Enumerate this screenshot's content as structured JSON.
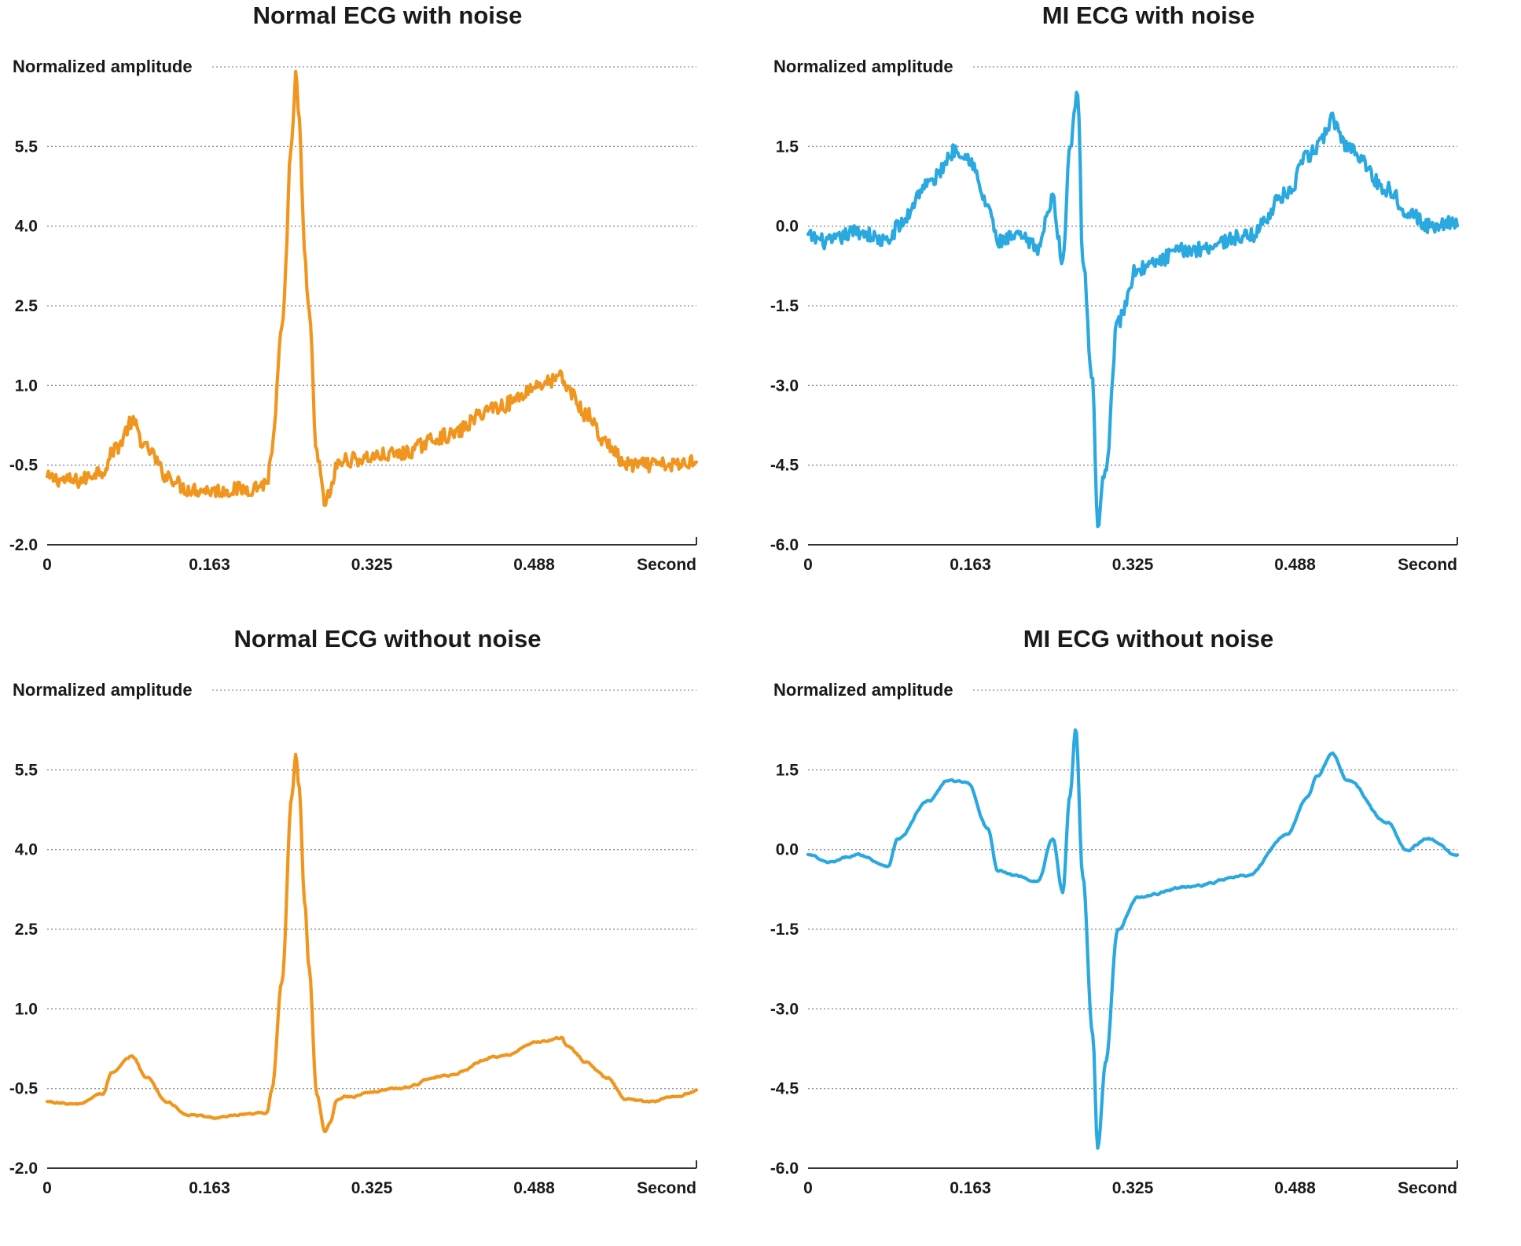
{
  "chart_data": [
    {
      "type": "line",
      "title": "Normal ECG with noise",
      "ylabel": "Normalized amplitude",
      "xlabel": "Second",
      "color": "#f0961e",
      "ylim": [
        -2.0,
        7.0
      ],
      "xlim": [
        0,
        0.65
      ],
      "yticks": [
        "5.5",
        "4.0",
        "2.5",
        "1.0",
        "-0.5",
        "-2.0"
      ],
      "xticks": [
        "0",
        "0.163",
        "0.325",
        "0.488",
        "Second"
      ],
      "series": [
        {
          "noise": true,
          "x": [
            0,
            0.03,
            0.055,
            0.07,
            0.085,
            0.1,
            0.12,
            0.14,
            0.17,
            0.2,
            0.22,
            0.225,
            0.235,
            0.245,
            0.249,
            0.252,
            0.258,
            0.262,
            0.27,
            0.278,
            0.283,
            0.29,
            0.3,
            0.35,
            0.4,
            0.45,
            0.5,
            0.515,
            0.52,
            0.54,
            0.56,
            0.58,
            0.6,
            0.63,
            0.65
          ],
          "y": [
            -0.75,
            -0.8,
            -0.6,
            -0.15,
            0.3,
            -0.2,
            -0.7,
            -0.95,
            -0.98,
            -0.95,
            -0.85,
            -0.2,
            2.0,
            5.6,
            6.8,
            6.0,
            3.5,
            2.4,
            -0.3,
            -1.2,
            -1.05,
            -0.5,
            -0.4,
            -0.3,
            0.05,
            0.6,
            1.05,
            1.15,
            0.95,
            0.45,
            -0.1,
            -0.5,
            -0.5,
            -0.5,
            -0.4
          ]
        }
      ]
    },
    {
      "type": "line",
      "title": "MI ECG with noise",
      "ylabel": "Normalized amplitude",
      "xlabel": "Second",
      "color": "#2aa8e0",
      "ylim": [
        -6.0,
        3.0
      ],
      "xlim": [
        0,
        0.65
      ],
      "yticks": [
        "1.5",
        "0.0",
        "-1.5",
        "-3.0",
        "-4.5",
        "-6.0"
      ],
      "xticks": [
        "0",
        "0.163",
        "0.325",
        "0.488",
        "Second"
      ],
      "series": [
        {
          "noise": true,
          "x": [
            0,
            0.02,
            0.05,
            0.08,
            0.09,
            0.12,
            0.15,
            0.16,
            0.18,
            0.19,
            0.21,
            0.23,
            0.245,
            0.255,
            0.262,
            0.27,
            0.275,
            0.285,
            0.29,
            0.298,
            0.31,
            0.33,
            0.38,
            0.44,
            0.48,
            0.5,
            0.51,
            0.525,
            0.54,
            0.58,
            0.6,
            0.62,
            0.65
          ],
          "y": [
            -0.2,
            -0.3,
            -0.1,
            -0.3,
            0.0,
            0.8,
            1.45,
            1.3,
            0.4,
            -0.3,
            -0.2,
            -0.4,
            0.5,
            -0.7,
            1.5,
            2.6,
            -0.6,
            -3.0,
            -5.6,
            -4.5,
            -1.8,
            -0.8,
            -0.45,
            -0.2,
            0.6,
            1.3,
            1.5,
            2.0,
            1.5,
            0.7,
            0.3,
            0.0,
            0.1
          ]
        }
      ]
    },
    {
      "type": "line",
      "title": "Normal ECG without noise",
      "ylabel": "Normalized amplitude",
      "xlabel": "Second",
      "color": "#f0961e",
      "ylim": [
        -2.0,
        7.0
      ],
      "xlim": [
        0,
        0.65
      ],
      "yticks": [
        "5.5",
        "4.0",
        "2.5",
        "1.0",
        "-0.5",
        "-2.0"
      ],
      "xticks": [
        "0",
        "0.163",
        "0.325",
        "0.488",
        "Second"
      ],
      "series": [
        {
          "noise": false,
          "x": [
            0,
            0.03,
            0.055,
            0.065,
            0.085,
            0.1,
            0.12,
            0.14,
            0.17,
            0.2,
            0.22,
            0.225,
            0.235,
            0.245,
            0.249,
            0.252,
            0.258,
            0.262,
            0.27,
            0.278,
            0.283,
            0.29,
            0.3,
            0.35,
            0.4,
            0.45,
            0.5,
            0.515,
            0.52,
            0.54,
            0.56,
            0.58,
            0.6,
            0.63,
            0.65
          ],
          "y": [
            -0.75,
            -0.8,
            -0.6,
            -0.2,
            0.1,
            -0.3,
            -0.75,
            -1.0,
            -1.05,
            -1.0,
            -0.95,
            -0.5,
            1.5,
            5.0,
            5.8,
            5.2,
            3.0,
            1.8,
            -0.6,
            -1.3,
            -1.15,
            -0.7,
            -0.65,
            -0.5,
            -0.25,
            0.1,
            0.4,
            0.45,
            0.3,
            0.0,
            -0.3,
            -0.7,
            -0.75,
            -0.65,
            -0.55
          ]
        }
      ]
    },
    {
      "type": "line",
      "title": "MI ECG without noise",
      "ylabel": "Normalized amplitude",
      "xlabel": "Second",
      "color": "#2aa8e0",
      "ylim": [
        -6.0,
        3.0
      ],
      "xlim": [
        0,
        0.65
      ],
      "yticks": [
        "1.5",
        "0.0",
        "-1.5",
        "-3.0",
        "-4.5",
        "-6.0"
      ],
      "xticks": [
        "0",
        "0.163",
        "0.325",
        "0.488",
        "Second"
      ],
      "series": [
        {
          "noise": false,
          "x": [
            0,
            0.02,
            0.05,
            0.08,
            0.09,
            0.12,
            0.14,
            0.16,
            0.18,
            0.19,
            0.21,
            0.23,
            0.245,
            0.255,
            0.262,
            0.268,
            0.275,
            0.285,
            0.29,
            0.298,
            0.31,
            0.33,
            0.38,
            0.44,
            0.48,
            0.5,
            0.51,
            0.525,
            0.54,
            0.58,
            0.6,
            0.62,
            0.65
          ],
          "y": [
            -0.1,
            -0.25,
            -0.1,
            -0.3,
            0.2,
            0.9,
            1.3,
            1.25,
            0.4,
            -0.4,
            -0.5,
            -0.6,
            0.2,
            -0.8,
            1.0,
            2.3,
            -0.5,
            -3.5,
            -5.6,
            -4.0,
            -1.5,
            -0.9,
            -0.7,
            -0.5,
            0.3,
            1.0,
            1.4,
            1.8,
            1.3,
            0.5,
            0.0,
            0.2,
            -0.1
          ]
        }
      ]
    }
  ]
}
